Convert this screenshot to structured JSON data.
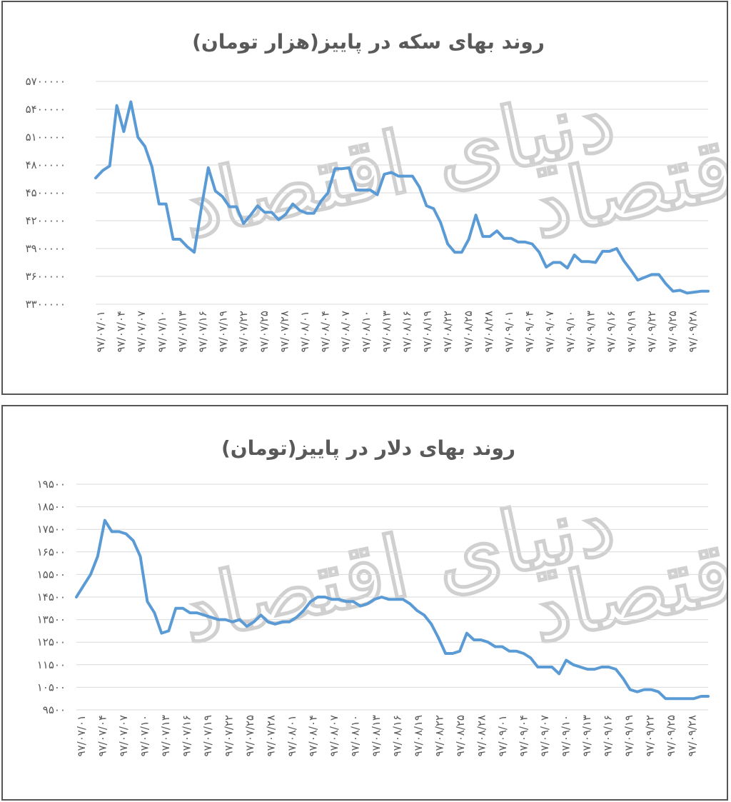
{
  "watermark": "دنیای اقتصاد",
  "chart_data": [
    {
      "type": "line",
      "title": "روند بهای سکه در پاییز(هزار تومان)",
      "xlabel": "",
      "ylabel": "",
      "ylim": [
        3300000,
        5700000
      ],
      "yticks": [
        {
          "value": 3300000,
          "label": "۳۳۰۰۰۰۰"
        },
        {
          "value": 3600000,
          "label": "۳۶۰۰۰۰۰"
        },
        {
          "value": 3900000,
          "label": "۳۹۰۰۰۰۰"
        },
        {
          "value": 4200000,
          "label": "۴۲۰۰۰۰۰"
        },
        {
          "value": 4500000,
          "label": "۴۵۰۰۰۰۰"
        },
        {
          "value": 4800000,
          "label": "۴۸۰۰۰۰۰"
        },
        {
          "value": 5100000,
          "label": "۵۱۰۰۰۰۰"
        },
        {
          "value": 5400000,
          "label": "۵۴۰۰۰۰۰"
        },
        {
          "value": 5700000,
          "label": "۵۷۰۰۰۰۰"
        }
      ],
      "x_tick_labels": [
        "۹۷/۰۷/۰۱",
        "۹۷/۰۷/۰۴",
        "۹۷/۰۷/۰۷",
        "۹۷/۰۷/۱۰",
        "۹۷/۰۷/۱۳",
        "۹۷/۰۷/۱۶",
        "۹۷/۰۷/۱۹",
        "۹۷/۰۷/۲۲",
        "۹۷/۰۷/۲۵",
        "۹۷/۰۷/۲۸",
        "۹۷/۰۸/۰۱",
        "۹۷/۰۸/۰۴",
        "۹۷/۰۸/۰۷",
        "۹۷/۰۸/۱۰",
        "۹۷/۰۸/۱۳",
        "۹۷/۰۸/۱۶",
        "۹۷/۰۸/۱۹",
        "۹۷/۰۸/۲۲",
        "۹۷/۰۸/۲۵",
        "۹۷/۰۸/۲۸",
        "۹۷/۰۹/۰۱",
        "۹۷/۰۹/۰۴",
        "۹۷/۰۹/۰۷",
        "۹۷/۰۹/۱۰",
        "۹۷/۰۹/۱۳",
        "۹۷/۰۹/۱۶",
        "۹۷/۰۹/۱۹",
        "۹۷/۰۹/۲۲",
        "۹۷/۰۹/۲۵",
        "۹۷/۰۹/۲۸"
      ],
      "color": "#5b9bd5",
      "values": [
        4660000,
        4740000,
        4790000,
        5440000,
        5160000,
        5480000,
        5100000,
        5000000,
        4780000,
        4380000,
        4380000,
        4000000,
        4000000,
        3920000,
        3860000,
        4330000,
        4770000,
        4520000,
        4460000,
        4350000,
        4350000,
        4170000,
        4260000,
        4360000,
        4290000,
        4290000,
        4210000,
        4270000,
        4380000,
        4310000,
        4280000,
        4280000,
        4410000,
        4500000,
        4760000,
        4760000,
        4770000,
        4530000,
        4530000,
        4530000,
        4480000,
        4700000,
        4720000,
        4680000,
        4680000,
        4680000,
        4560000,
        4360000,
        4330000,
        4180000,
        3950000,
        3860000,
        3860000,
        4000000,
        4260000,
        4030000,
        4030000,
        4090000,
        4010000,
        4010000,
        3970000,
        3970000,
        3950000,
        3860000,
        3700000,
        3750000,
        3750000,
        3690000,
        3830000,
        3760000,
        3760000,
        3750000,
        3870000,
        3870000,
        3900000,
        3770000,
        3670000,
        3560000,
        3590000,
        3620000,
        3620000,
        3520000,
        3440000,
        3450000,
        3420000,
        3430000,
        3440000,
        3440000
      ]
    },
    {
      "type": "line",
      "title": "روند بهای دلار در پاییز(تومان)",
      "xlabel": "",
      "ylabel": "",
      "ylim": [
        9500,
        19500
      ],
      "yticks": [
        {
          "value": 9500,
          "label": "۹۵۰۰"
        },
        {
          "value": 10500,
          "label": "۱۰۵۰۰"
        },
        {
          "value": 11500,
          "label": "۱۱۵۰۰"
        },
        {
          "value": 12500,
          "label": "۱۲۵۰۰"
        },
        {
          "value": 13500,
          "label": "۱۳۵۰۰"
        },
        {
          "value": 14500,
          "label": "۱۴۵۰۰"
        },
        {
          "value": 15500,
          "label": "۱۵۵۰۰"
        },
        {
          "value": 16500,
          "label": "۱۶۵۰۰"
        },
        {
          "value": 17500,
          "label": "۱۷۵۰۰"
        },
        {
          "value": 18500,
          "label": "۱۸۵۰۰"
        },
        {
          "value": 19500,
          "label": "۱۹۵۰۰"
        }
      ],
      "x_tick_labels": [
        "۹۷/۰۷/۰۱",
        "۹۷/۰۷/۰۴",
        "۹۷/۰۷/۰۷",
        "۹۷/۰۷/۱۰",
        "۹۷/۰۷/۱۳",
        "۹۷/۰۷/۱۶",
        "۹۷/۰۷/۱۹",
        "۹۷/۰۷/۲۲",
        "۹۷/۰۷/۲۵",
        "۹۷/۰۷/۲۸",
        "۹۷/۰۸/۰۱",
        "۹۷/۰۸/۰۴",
        "۹۷/۰۸/۰۷",
        "۹۷/۰۸/۱۰",
        "۹۷/۰۸/۱۳",
        "۹۷/۰۸/۱۶",
        "۹۷/۰۸/۱۹",
        "۹۷/۰۸/۲۲",
        "۹۷/۰۸/۲۵",
        "۹۷/۰۸/۲۸",
        "۹۷/۰۹/۰۱",
        "۹۷/۰۹/۰۴",
        "۹۷/۰۹/۰۷",
        "۹۷/۰۹/۱۰",
        "۹۷/۰۹/۱۳",
        "۹۷/۰۹/۱۶",
        "۹۷/۰۹/۱۹",
        "۹۷/۰۹/۲۲",
        "۹۷/۰۹/۲۵",
        "۹۷/۰۹/۲۸"
      ],
      "color": "#5b9bd5",
      "values": [
        14500,
        15000,
        15500,
        16300,
        17900,
        17400,
        17400,
        17300,
        17000,
        16300,
        14300,
        13800,
        12900,
        13000,
        14000,
        14000,
        13800,
        13800,
        13700,
        13600,
        13500,
        13500,
        13400,
        13500,
        13200,
        13400,
        13700,
        13400,
        13300,
        13400,
        13400,
        13600,
        13900,
        14300,
        14500,
        14500,
        14400,
        14400,
        14300,
        14300,
        14100,
        14200,
        14400,
        14500,
        14400,
        14400,
        14400,
        14200,
        13900,
        13700,
        13300,
        12700,
        12000,
        12000,
        12100,
        12900,
        12600,
        12600,
        12500,
        12300,
        12300,
        12100,
        12100,
        12000,
        11800,
        11400,
        11400,
        11400,
        11100,
        11700,
        11500,
        11400,
        11300,
        11300,
        11400,
        11400,
        11300,
        10900,
        10400,
        10300,
        10400,
        10400,
        10300,
        10000,
        10000,
        10000,
        10000,
        10000,
        10100,
        10100
      ]
    }
  ]
}
